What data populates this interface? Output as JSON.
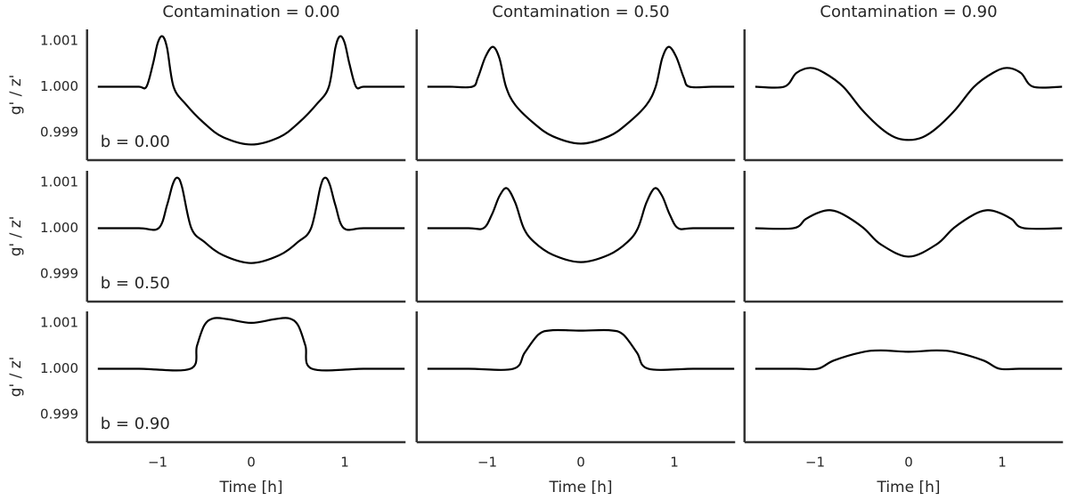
{
  "chart_data": [
    {
      "type": "line",
      "title": "Contamination = 0.00",
      "annotation": "b = 0.00",
      "ylabel": "g' / z'",
      "color": "#000000",
      "xlim": [
        -1.65,
        1.65
      ],
      "ylim": [
        0.9984,
        1.00125
      ],
      "yticks": [
        0.999,
        {
          "value": 1.0,
          "label": "1.000"
        },
        1.001
      ],
      "x": [
        -1.64,
        -1.4,
        -1.2,
        -1.12,
        -1.05,
        -1,
        -0.95,
        -0.9,
        -0.83,
        -0.7,
        -0.5,
        -0.3,
        0,
        0.3,
        0.5,
        0.7,
        0.83,
        0.9,
        0.95,
        1,
        1.05,
        1.12,
        1.2,
        1.4,
        1.64
      ],
      "values": [
        1,
        1,
        1,
        1,
        1.0005,
        1.00095,
        1.0011,
        1.00085,
        1,
        0.99962,
        0.9992,
        0.9989,
        0.99874,
        0.9989,
        0.9992,
        0.99962,
        1,
        1.00085,
        1.0011,
        1.00095,
        1.0005,
        1,
        1,
        1,
        1
      ]
    },
    {
      "type": "line",
      "title": "Contamination = 0.50",
      "color": "#000000",
      "xlim": [
        -1.65,
        1.65
      ],
      "ylim": [
        0.9984,
        1.00125
      ],
      "x": [
        -1.64,
        -1.4,
        -1.16,
        -1.1,
        -1.02,
        -0.94,
        -0.87,
        -0.8,
        -0.7,
        -0.5,
        -0.3,
        0,
        0.3,
        0.5,
        0.7,
        0.8,
        0.87,
        0.94,
        1.02,
        1.1,
        1.16,
        1.4,
        1.64
      ],
      "values": [
        1,
        1,
        1,
        1.0002,
        1.00065,
        1.00087,
        1.00062,
        1,
        0.9996,
        0.9992,
        0.99892,
        0.99876,
        0.99892,
        0.9992,
        0.9996,
        1,
        1.00062,
        1.00087,
        1.00065,
        1.0002,
        1,
        1,
        1
      ]
    },
    {
      "type": "line",
      "title": "Contamination = 0.90",
      "color": "#000000",
      "xlim": [
        -1.65,
        1.65
      ],
      "ylim": [
        0.9984,
        1.00125
      ],
      "x": [
        -1.64,
        -1.33,
        -1.2,
        -1.05,
        -0.9,
        -0.7,
        -0.5,
        -0.3,
        -0.15,
        0,
        0.15,
        0.3,
        0.5,
        0.7,
        0.9,
        1.05,
        1.2,
        1.33,
        1.64
      ],
      "values": [
        1,
        1,
        1.0003,
        1.00041,
        1.0003,
        1,
        0.9995,
        0.9991,
        0.9989,
        0.99884,
        0.9989,
        0.9991,
        0.9995,
        1,
        1.0003,
        1.00041,
        1.0003,
        1,
        1
      ]
    },
    {
      "type": "line",
      "annotation": "b = 0.50",
      "ylabel": "g' / z'",
      "color": "#000000",
      "xlim": [
        -1.65,
        1.65
      ],
      "ylim": [
        0.9984,
        1.00125
      ],
      "yticks": [
        0.999,
        {
          "value": 1.0,
          "label": "1.000"
        },
        1.001
      ],
      "x": [
        -1.64,
        -1.2,
        -0.99,
        -0.9,
        -0.84,
        -0.79,
        -0.74,
        -0.64,
        -0.5,
        -0.3,
        0,
        0.3,
        0.5,
        0.64,
        0.74,
        0.79,
        0.84,
        0.9,
        0.99,
        1.2,
        1.64
      ],
      "values": [
        1,
        1,
        1,
        1.0005,
        1.00095,
        1.0011,
        1.0009,
        1,
        0.9997,
        0.99941,
        0.99924,
        0.99941,
        0.9997,
        1,
        1.0009,
        1.0011,
        1.00095,
        1.0005,
        1,
        1,
        1
      ]
    },
    {
      "type": "line",
      "color": "#000000",
      "xlim": [
        -1.65,
        1.65
      ],
      "ylim": [
        0.9984,
        1.00125
      ],
      "x": [
        -1.64,
        -1.2,
        -1.04,
        -0.95,
        -0.87,
        -0.79,
        -0.7,
        -0.61,
        -0.5,
        -0.3,
        0,
        0.3,
        0.5,
        0.61,
        0.7,
        0.79,
        0.87,
        0.95,
        1.04,
        1.2,
        1.64
      ],
      "values": [
        1,
        1,
        1,
        1.0003,
        1.0007,
        1.00087,
        1.00055,
        1,
        0.9997,
        0.99942,
        0.99926,
        0.99942,
        0.9997,
        1,
        1.00055,
        1.00087,
        1.0007,
        1.0003,
        1,
        1,
        1
      ]
    },
    {
      "type": "line",
      "color": "#000000",
      "xlim": [
        -1.65,
        1.65
      ],
      "ylim": [
        0.9984,
        1.00125
      ],
      "x": [
        -1.64,
        -1.23,
        -1.1,
        -0.95,
        -0.83,
        -0.7,
        -0.48,
        -0.3,
        0,
        0.3,
        0.48,
        0.7,
        0.83,
        0.95,
        1.1,
        1.23,
        1.64
      ],
      "values": [
        1,
        1,
        1.0002,
        1.00035,
        1.00039,
        1.0003,
        1,
        0.99965,
        0.99938,
        0.99965,
        1,
        1.0003,
        1.00039,
        1.00035,
        1.0002,
        1,
        1
      ]
    },
    {
      "type": "line",
      "annotation": "b = 0.90",
      "ylabel": "g' / z'",
      "xlabel": "Time [h]",
      "color": "#000000",
      "xlim": [
        -1.65,
        1.65
      ],
      "ylim": [
        0.9984,
        1.00125
      ],
      "yticks": [
        0.999,
        {
          "value": 1.0,
          "label": "1.000"
        },
        1.001
      ],
      "xticks": [
        {
          "value": -1,
          "label": "−1"
        },
        0,
        1
      ],
      "x": [
        -1.64,
        -1.2,
        -0.65,
        -0.58,
        -0.5,
        -0.4,
        -0.25,
        0,
        0.25,
        0.4,
        0.5,
        0.58,
        0.65,
        1.2,
        1.64
      ],
      "values": [
        1,
        1,
        1,
        1.0005,
        1.00095,
        1.0011,
        1.00108,
        1.001,
        1.00108,
        1.0011,
        1.00095,
        1.0005,
        1,
        1,
        1
      ]
    },
    {
      "type": "line",
      "xlabel": "Time [h]",
      "color": "#000000",
      "xlim": [
        -1.65,
        1.65
      ],
      "ylim": [
        0.9984,
        1.00125
      ],
      "xticks": [
        {
          "value": -1,
          "label": "−1"
        },
        0,
        1
      ],
      "x": [
        -1.64,
        -1.2,
        -0.72,
        -0.6,
        -0.45,
        -0.3,
        0,
        0.3,
        0.45,
        0.6,
        0.72,
        1.2,
        1.64
      ],
      "values": [
        1,
        1,
        1,
        1.00035,
        1.00075,
        1.00084,
        1.00083,
        1.00084,
        1.00075,
        1.00035,
        1,
        1,
        1
      ]
    },
    {
      "type": "line",
      "xlabel": "Time [h]",
      "color": "#000000",
      "xlim": [
        -1.65,
        1.65
      ],
      "ylim": [
        0.9984,
        1.00125
      ],
      "xticks": [
        {
          "value": -1,
          "label": "−1"
        },
        0,
        1
      ],
      "x": [
        -1.64,
        -1.2,
        -0.97,
        -0.8,
        -0.5,
        -0.3,
        0,
        0.3,
        0.5,
        0.8,
        0.97,
        1.2,
        1.64
      ],
      "values": [
        1,
        1,
        1,
        1.00018,
        1.00036,
        1.0004,
        1.00037,
        1.0004,
        1.00036,
        1.00018,
        1,
        1,
        1
      ]
    }
  ]
}
